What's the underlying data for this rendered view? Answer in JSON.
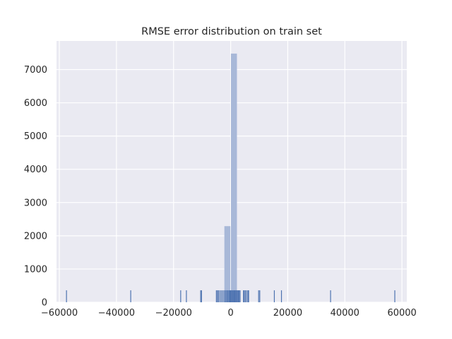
{
  "chart_data": {
    "type": "histogram",
    "title": "RMSE error distribution on train set",
    "xlabel": "",
    "ylabel": "",
    "xlim": [
      -61000,
      61700
    ],
    "ylim": [
      0,
      7860
    ],
    "grid": true,
    "x_ticks": [
      -60000,
      -40000,
      -20000,
      0,
      20000,
      40000,
      60000
    ],
    "x_tick_labels": [
      "−60000",
      "−40000",
      "−20000",
      "0",
      "20000",
      "40000",
      "60000"
    ],
    "y_ticks": [
      0,
      1000,
      2000,
      3000,
      4000,
      5000,
      6000,
      7000
    ],
    "y_tick_labels": [
      "0",
      "1000",
      "2000",
      "3000",
      "4000",
      "5000",
      "6000",
      "7000"
    ],
    "colors": {
      "background": "#eaeaf2",
      "grid": "#ffffff",
      "bar": "#a8b8d8",
      "rug": "#4c72b0"
    },
    "bars": [
      {
        "x0": -57900,
        "x1": -55500,
        "count": 0
      },
      {
        "x0": -2300,
        "x1": 0,
        "count": 2290
      },
      {
        "x0": 0,
        "x1": 2300,
        "count": 7480
      },
      {
        "x0": 2300,
        "x1": 4600,
        "count": 0
      }
    ],
    "rug_x": [
      -57500,
      -35000,
      -17500,
      -15500,
      -10500,
      -10200,
      -5000,
      -4600,
      -4300,
      -3800,
      -3300,
      -2800,
      -2300,
      -1800,
      -1400,
      -1000,
      -600,
      -300,
      0,
      300,
      600,
      900,
      1200,
      1500,
      1800,
      2100,
      2400,
      2700,
      3000,
      3300,
      4500,
      4700,
      5100,
      5500,
      6000,
      6300,
      9800,
      10200,
      15300,
      17800,
      35000,
      57500
    ],
    "rug_height": 360
  }
}
